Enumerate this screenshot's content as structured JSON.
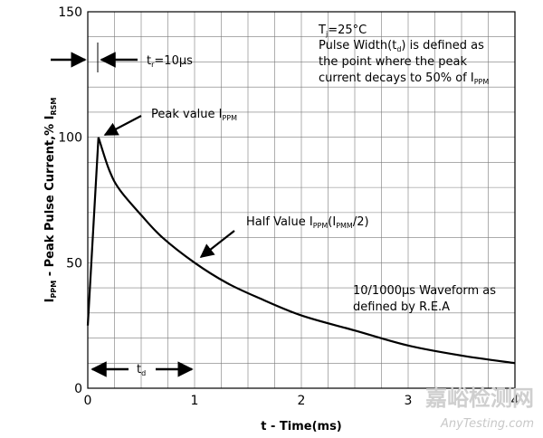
{
  "chart_data": {
    "type": "line",
    "xlabel": "t - Time(ms)",
    "ylabel": {
      "prefix": "I",
      "prefix_sub": "PPM",
      "middle": " - Peak Pulse Current,% I",
      "suffix_sub": "RSM"
    },
    "xlim": [
      0,
      4
    ],
    "ylim": [
      0,
      150
    ],
    "x_ticks": [
      0,
      1,
      2,
      3,
      4
    ],
    "y_ticks": [
      0,
      50,
      100,
      150
    ],
    "grid": true,
    "series": [
      {
        "x": [
          0,
          0.1,
          0.2,
          0.3,
          0.5,
          0.7,
          1.0,
          1.3,
          1.6,
          2.0,
          2.5,
          3.0,
          3.5,
          4.0
        ],
        "y": [
          25,
          100,
          87,
          79,
          69,
          60,
          50,
          42,
          36,
          29,
          23,
          17,
          13,
          10
        ]
      }
    ],
    "annotations": {
      "tr": {
        "base": "t",
        "sub": "r",
        "rest": "=10µs"
      },
      "tj": {
        "base": "T",
        "sub": "j",
        "rest": "=25°C"
      },
      "pw1": {
        "text": "Pulse Width(t",
        "sub": "d",
        "rest": ") is defined as"
      },
      "pw2": "the point where the peak",
      "pw3": {
        "text": "current decays to 50% of I",
        "sub": "PPM"
      },
      "peak": {
        "text": "Peak value I",
        "sub": "PPM"
      },
      "half": {
        "text": "Half Value I",
        "sub1": "PPM",
        "mid": "(I",
        "sub2": "PMM",
        "end": "/2)"
      },
      "wave1": "10/1000µs Waveform as",
      "wave2": "defined by R.E.A",
      "td": {
        "base": "t",
        "sub": "d"
      }
    }
  },
  "watermark": {
    "cn": "嘉峪检测网",
    "en": "AnyTesting.com"
  }
}
